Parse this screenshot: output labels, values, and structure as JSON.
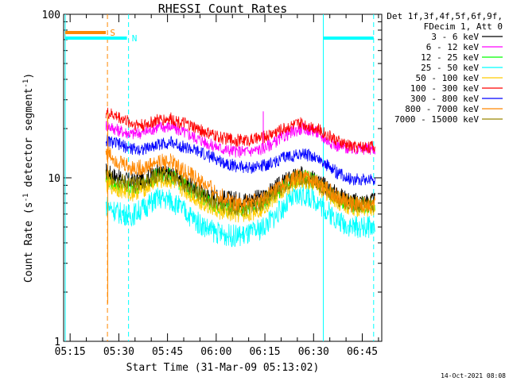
{
  "chart_data": {
    "type": "line",
    "title": "RHESSI Count Rates",
    "xlabel": "Start Time (31-Mar-09 05:13:02)",
    "ylabel": "Count Rate (s",
    "ylabel_sup": "-1",
    "ylabel_mid": " detector segment",
    "ylabel_sup2": "-1",
    "ylabel_end": ")",
    "y_scale": "log",
    "ylim": [
      1,
      100
    ],
    "xlim": [
      "05:13:02",
      "06:51:00"
    ],
    "x_ticks": [
      "05:15",
      "05:30",
      "05:45",
      "06:00",
      "06:15",
      "06:30",
      "06:45"
    ],
    "y_ticks": [
      "1",
      "10",
      "100"
    ],
    "grid": false,
    "legend_placement": "right",
    "legend_header": [
      "Det 1f,3f,4f,5f,6f,9f,",
      "FDecim 1, Att 0"
    ],
    "series": [
      {
        "name": "3 - 6 keV",
        "color": "#000000",
        "values": [
          11.0,
          10.0,
          9.5,
          9.8,
          10.8,
          10.5,
          9.5,
          8.5,
          7.8,
          7.5,
          7.4,
          7.4,
          7.6,
          8.6,
          9.8,
          10.5,
          10.0,
          8.8,
          7.8,
          7.2
        ]
      },
      {
        "name": "6 - 12 keV",
        "color": "#ff00ff",
        "values": [
          21.0,
          19.5,
          18.5,
          19.0,
          20.5,
          20.5,
          19.0,
          17.5,
          16.0,
          15.0,
          14.5,
          14.5,
          15.0,
          16.5,
          18.5,
          20.0,
          19.5,
          17.0,
          15.5,
          15.0
        ]
      },
      {
        "name": "12 - 25 keV",
        "color": "#00ff00",
        "values": [
          9.8,
          9.0,
          8.6,
          9.3,
          10.3,
          10.2,
          9.1,
          8.0,
          7.1,
          6.6,
          6.4,
          6.4,
          6.9,
          7.9,
          9.3,
          10.2,
          9.7,
          8.4,
          7.3,
          6.8
        ]
      },
      {
        "name": "25 - 50 keV",
        "color": "#00ffff",
        "values": [
          6.8,
          6.1,
          5.9,
          6.6,
          7.5,
          7.3,
          6.3,
          5.4,
          4.8,
          4.5,
          4.4,
          4.5,
          4.9,
          5.8,
          7.0,
          7.9,
          7.5,
          6.3,
          5.4,
          5.0
        ]
      },
      {
        "name": "50 - 100 keV",
        "color": "#ffcc00",
        "values": [
          9.2,
          8.5,
          8.0,
          8.6,
          9.6,
          9.5,
          8.4,
          7.4,
          6.6,
          6.1,
          5.9,
          6.0,
          6.5,
          7.5,
          8.8,
          9.7,
          9.3,
          8.0,
          7.0,
          6.5
        ]
      },
      {
        "name": "100 - 300 keV",
        "color": "#ff0000",
        "values": [
          25.0,
          23.5,
          21.5,
          21.0,
          22.5,
          23.0,
          21.5,
          20.0,
          18.5,
          17.5,
          17.0,
          17.0,
          17.5,
          19.0,
          20.5,
          21.5,
          20.5,
          18.5,
          16.5,
          15.5
        ]
      },
      {
        "name": "300 - 800 keV",
        "color": "#0000ff",
        "values": [
          17.0,
          16.0,
          15.0,
          15.0,
          16.0,
          16.5,
          15.5,
          14.5,
          13.5,
          12.5,
          11.8,
          11.5,
          11.8,
          12.5,
          13.5,
          14.0,
          13.5,
          12.0,
          10.5,
          9.8
        ]
      },
      {
        "name": "800 - 7000 keV",
        "color": "#ff8800",
        "values": [
          14.5,
          12.5,
          11.5,
          11.5,
          12.5,
          12.5,
          11.0,
          9.8,
          8.6,
          7.6,
          7.1,
          7.0,
          7.3,
          8.3,
          9.5,
          10.2,
          9.7,
          8.5,
          7.5,
          6.9
        ]
      },
      {
        "name": "7000 - 15000 keV",
        "color": "#998800",
        "values": [
          10.5,
          9.6,
          9.0,
          9.4,
          10.3,
          10.2,
          9.2,
          8.2,
          7.3,
          6.8,
          6.6,
          6.6,
          7.0,
          8.0,
          9.3,
          10.0,
          9.6,
          8.4,
          7.4,
          6.9
        ]
      }
    ],
    "x_minutes_from_0513": [
      13,
      17,
      21,
      25,
      29,
      33,
      37,
      41,
      45,
      49,
      53,
      57,
      61,
      65,
      69,
      73,
      77,
      81,
      85,
      89
    ],
    "annotations": [
      {
        "text": "S",
        "color": "#ff8800",
        "label": "slew/attenuator state bar"
      },
      {
        "text": "N",
        "color": "#00ffff",
        "label": "night bar"
      }
    ],
    "spike": {
      "series": "6 - 12 keV",
      "value": 25.5
    }
  },
  "footer_timestamp": "14-Oct-2021 08:08",
  "axis_color": "#000000",
  "background": "#ffffff"
}
